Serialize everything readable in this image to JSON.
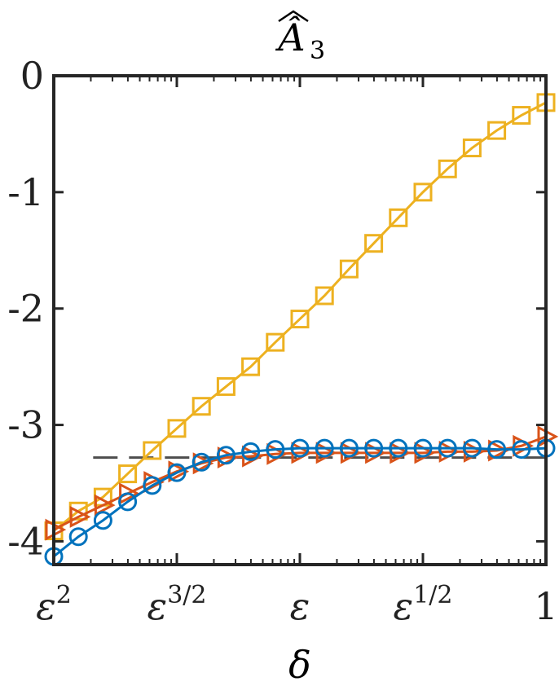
{
  "chart_data": {
    "type": "line",
    "title": "Â",
    "title_sub": "3",
    "xlabel": "δ",
    "ylabel": "",
    "x_scale": "log",
    "x_ticks": [
      {
        "label_base": "ε",
        "label_sup": "2"
      },
      {
        "label_base": "ε",
        "label_sup": "3/2"
      },
      {
        "label_base": "ε",
        "label_sup": ""
      },
      {
        "label_base": "ε",
        "label_sup": "1/2"
      },
      {
        "label_base": "1",
        "label_sup": ""
      }
    ],
    "x_tick_positions": [
      0,
      0.25,
      0.5,
      0.75,
      1
    ],
    "y_ticks": [
      "0",
      "-1",
      "-2",
      "-3",
      "-4"
    ],
    "y_tick_values": [
      0,
      -1,
      -2,
      -3,
      -4
    ],
    "ylim": [
      -4.2,
      0
    ],
    "grid": false,
    "legend": "none",
    "reference_line": {
      "y": -3.28,
      "style": "dashed"
    },
    "series": [
      {
        "color": "#EDB120",
        "marker": "square",
        "x": [
          0,
          0.05,
          0.1,
          0.15,
          0.2,
          0.25,
          0.3,
          0.35,
          0.4,
          0.45,
          0.5,
          0.55,
          0.6,
          0.65,
          0.7,
          0.75,
          0.8,
          0.85,
          0.9,
          0.95,
          1
        ],
        "y": [
          -3.91,
          -3.74,
          -3.62,
          -3.42,
          -3.22,
          -3.03,
          -2.84,
          -2.67,
          -2.5,
          -2.29,
          -2.09,
          -1.89,
          -1.66,
          -1.44,
          -1.22,
          -1.0,
          -0.8,
          -0.62,
          -0.47,
          -0.34,
          -0.23
        ]
      },
      {
        "color": "#D95319",
        "marker": "triangle-right",
        "x": [
          0,
          0.05,
          0.1,
          0.15,
          0.2,
          0.25,
          0.3,
          0.35,
          0.4,
          0.45,
          0.5,
          0.55,
          0.6,
          0.65,
          0.7,
          0.75,
          0.8,
          0.85,
          0.9,
          0.95,
          1
        ],
        "y": [
          -3.9,
          -3.79,
          -3.69,
          -3.59,
          -3.49,
          -3.4,
          -3.33,
          -3.28,
          -3.27,
          -3.25,
          -3.24,
          -3.24,
          -3.24,
          -3.24,
          -3.24,
          -3.24,
          -3.23,
          -3.23,
          -3.22,
          -3.18,
          -3.1
        ]
      },
      {
        "color": "#0072BD",
        "marker": "circle",
        "x": [
          0,
          0.05,
          0.1,
          0.15,
          0.2,
          0.25,
          0.3,
          0.35,
          0.4,
          0.45,
          0.5,
          0.55,
          0.6,
          0.65,
          0.7,
          0.75,
          0.8,
          0.85,
          0.9,
          0.95,
          1
        ],
        "y": [
          -4.13,
          -3.96,
          -3.82,
          -3.66,
          -3.52,
          -3.41,
          -3.32,
          -3.26,
          -3.23,
          -3.21,
          -3.2,
          -3.2,
          -3.2,
          -3.2,
          -3.2,
          -3.2,
          -3.2,
          -3.2,
          -3.21,
          -3.21,
          -3.2
        ]
      }
    ]
  }
}
